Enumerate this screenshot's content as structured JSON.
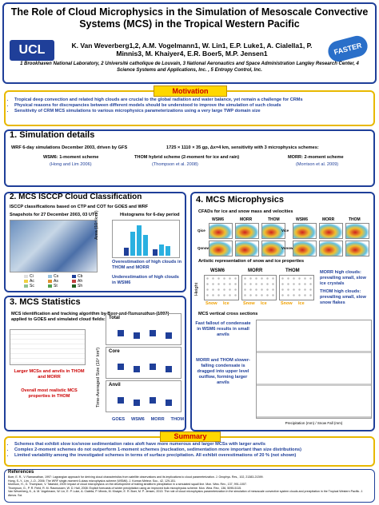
{
  "header": {
    "title": "The Role of Cloud Microphysics in the Simulation of Mesoscale Convective Systems (MCS) in the Tropical Western Pacific",
    "authors": "K. Van Weverberg1,2, A.M. Vogelmann1, W. Lin1, E.P. Luke1, A. Cialella1, P. Minnis3, M. Khaiyer4, E.R. Boer5, M.P. Jensen1",
    "affiliations": "1 Brookhaven National Laboratory, 2 Université catholique de Louvain, 3 National Aeronautics and Space Administration Langley Research Center, 4 Science Systems and Applications, Inc. , 5 Entropy Control, Inc.",
    "logo_left": "UCL",
    "logo_right": "FASTER"
  },
  "motivation": {
    "heading": "Motivation",
    "bullets": [
      "Tropical deep convection and related high clouds are crucial to the global radiation and water balance, yet remain a challenge for CRMs",
      "Physical reasons for discrepancies between different models should be understood to improve the simulation of such clouds",
      "Sensitivity of CRM MCS simulations to various microphysics parameterizations using a very large TWP domain size"
    ]
  },
  "section1": {
    "heading": "1. Simulation details",
    "bullet_left": "WRF 6-day simulations December 2003, driven by GFS",
    "bullet_right": "1725 × 1110 × 35 gp, Δx=4 km, sensitivity with 3 microphysics schemes:",
    "schemes": [
      {
        "name": "WSM6: 1-moment scheme",
        "ref": "(Hong and Lim 2006)"
      },
      {
        "name": "THOM hybrid scheme (2-moment for ice and rain)",
        "ref": "(Thompson et al. 2008)"
      },
      {
        "name": "MORR: 2-moment scheme",
        "ref": "(Morrison et al. 2009)"
      }
    ]
  },
  "section2": {
    "heading": "2. MCS ISCCP Cloud Classification",
    "bullet": "ISCCP classifications based on CTP and COT for GOES and WRF",
    "snap_caption": "Snapshots for 27 December 2003, 03 UTC",
    "hist_caption": "Histograms for 6-day period",
    "hist_ylabel": "Area (10⁴ km²)",
    "legend": [
      "Ci",
      "Cs",
      "Cb",
      "Ac",
      "As",
      "Ah",
      "Sc",
      "St",
      "Sh"
    ],
    "notes": [
      "Overestimation of high clouds in THOM and MORR",
      "Underestimation of high clouds in WSM6"
    ]
  },
  "section3": {
    "heading": "3. MCS Statistics",
    "bullet": "MCS identification and tracking algorithm by Boer and Ramanathan (1997) applied to GOES and simulated cloud fields:",
    "panels": [
      "Total",
      "Core",
      "Anvil"
    ],
    "ylabel": "Time-Averaged Size (10⁴ km²)",
    "xlabels": [
      "GOES",
      "WSM6",
      "MORR",
      "THOM"
    ],
    "notes": [
      "Larger MCSs and anvils in THOM and MORR",
      "Overall most realistic MCS properties in THOM"
    ]
  },
  "section4": {
    "heading": "4. MCS Microphysics",
    "bullet1": "CFADs for ice and snow mass and velocities",
    "cfad_titles": [
      "WSM6",
      "MORR",
      "THOM"
    ],
    "cfad_rows": [
      "Qice",
      "Qsnow",
      "Vice",
      "Vsnow"
    ],
    "bullet2": "Artistic representation of snow and ice properties",
    "art_titles": [
      "WSM6",
      "MORR",
      "THOM"
    ],
    "art_axis": "Height",
    "art_labels": [
      "Snow",
      "Ice"
    ],
    "art_notes": [
      "MORR high clouds: prevailing small, slow ice crystals",
      "THOM high clouds: prevailing small, slow snow flakes"
    ],
    "bullet3": "MCS vertical cross sections",
    "xs_notes": [
      "Fast fallout of condensate in WSM6 results in small anvils",
      "MORR and THOM slower-falling condensate is dragged into upper level outflow, forming larger anvils"
    ],
    "xs_axis": "Precipitation (mm) / Snow Fall (mm)"
  },
  "summary": {
    "heading": "Summary",
    "bullets": [
      "Schemes that exhibit slow ice/snow sedimentation rates aloft have more numerous and larger MCSs with larger anvils",
      "Complex 2-moment schemes do not outperform 1-moment schemes (nucleation, sedimentation more important than size distributions)",
      "Limited variability among the investigated schemes in terms of surface precipitation. All exhibit overestimations of 20 % (not shown)"
    ]
  },
  "references": {
    "heading": "References",
    "items": [
      "Boer, E. R., V. Ramanathan, 1997: Lagrangian approach for deriving cloud characteristics from satellite observations and its implications to cloud parameterization. J. Geophys. Res., 102, 21383-21399.",
      "Hong, S.-Y., Lim, J.-O., 2006: The WRF single-moment 6-class microphysics scheme (WSM6). J. Korean Meteor. Soc., 42, 129-151.",
      "Morrison, H., G. Thompson, V. Tatarskii, 2009: Impact of cloud microphysics on the development of trailing stratiform precipitation in a simulated squall line. Mon. Wea. Rev., 137, 991-1007.",
      "Thompson, G., P. R. Field, R. M. Rasmussen, W. D. Hall, 2008: Explicit forecasts of winter precipitation using an improved bulk microphysics scheme. Mon. Wea. Rev., 136, 5095-5115.",
      "Van Weverberg, K., A. M. Vogelmann, W. Lin, E. P. Luke, A. Cialella, P. Minnis, M. Khaiyer, E. R. Boer, M. P. Jensen, 2013: The role of cloud microphysics parameterization in the simulation of mesoscale convective system clouds and precipitation in the Tropical Western Pacific. J. Atmos. Sci."
    ]
  }
}
